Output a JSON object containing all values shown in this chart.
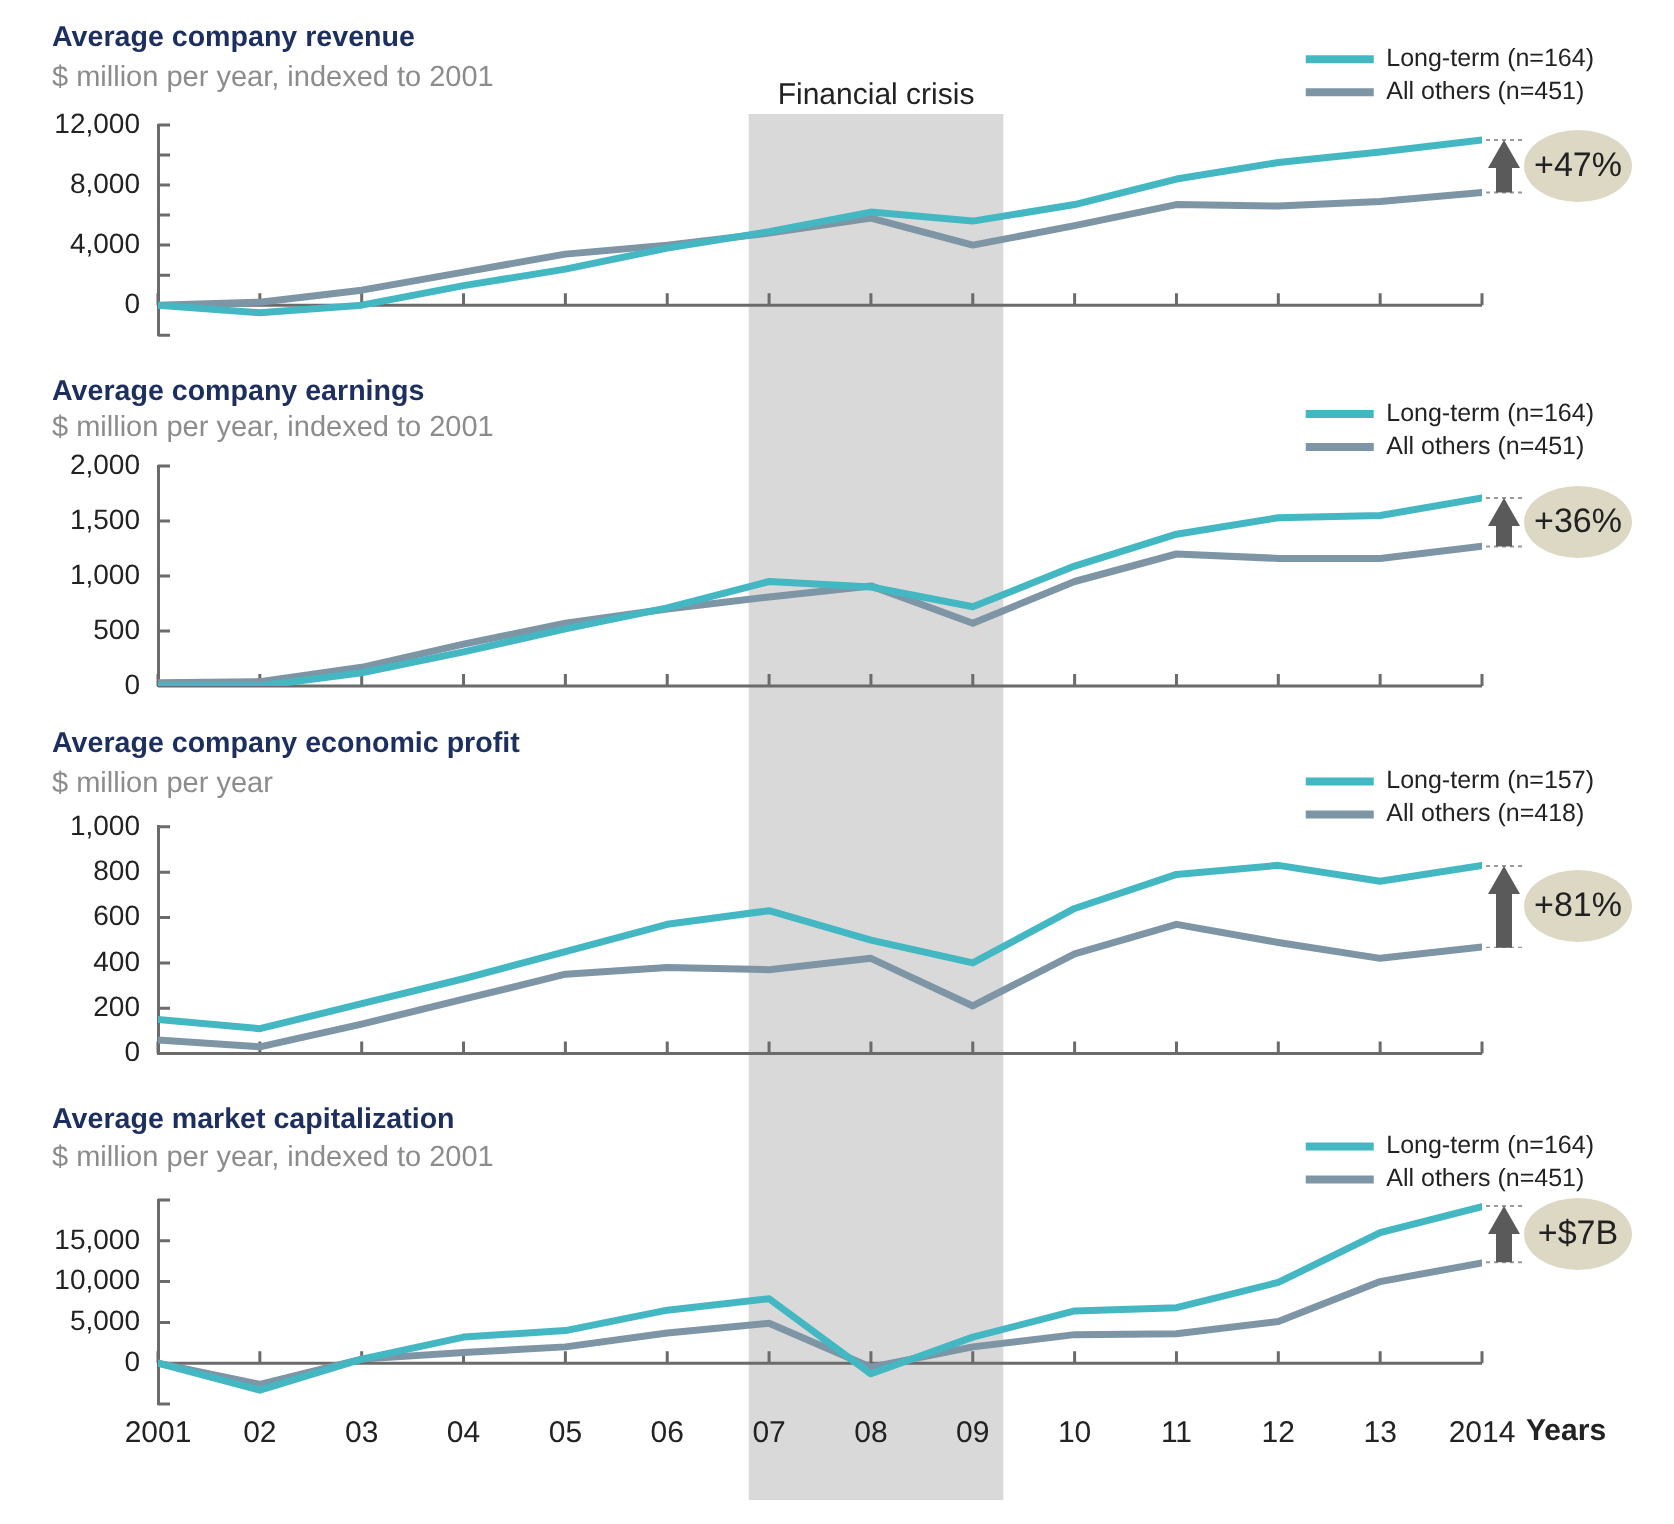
{
  "chart_data": [
    {
      "type": "line",
      "title": "Average company revenue",
      "subtitle": "$ million per year, indexed to 2001",
      "x": [
        2001,
        2002,
        2003,
        2004,
        2005,
        2006,
        2007,
        2008,
        2009,
        2010,
        2011,
        2012,
        2013,
        2014
      ],
      "xlim": [
        2001,
        2014
      ],
      "xticks": [
        {
          "value": 2001,
          "label": null
        },
        {
          "value": 2002,
          "label": null
        },
        {
          "value": 2003,
          "label": null
        },
        {
          "value": 2004,
          "label": null
        },
        {
          "value": 2005,
          "label": null
        },
        {
          "value": 2006,
          "label": null
        },
        {
          "value": 2007,
          "label": null
        },
        {
          "value": 2008,
          "label": null
        },
        {
          "value": 2009,
          "label": null
        },
        {
          "value": 2010,
          "label": null
        },
        {
          "value": 2011,
          "label": null
        },
        {
          "value": 2012,
          "label": null
        },
        {
          "value": 2013,
          "label": null
        },
        {
          "value": 2014,
          "label": null
        }
      ],
      "ylim": [
        -2000,
        12000
      ],
      "yticks": [
        {
          "value": -2000,
          "label": null
        },
        0,
        {
          "value": 2000,
          "label": null
        },
        {
          "value": 4000,
          "label": "4,000"
        },
        {
          "value": 6000,
          "label": null
        },
        {
          "value": 8000,
          "label": "8,000"
        },
        {
          "value": 10000,
          "label": null
        },
        {
          "value": 12000,
          "label": "12,000"
        }
      ],
      "tick_labels": "y",
      "legend": "top right",
      "marker": "none",
      "series": [
        {
          "name": "Long-term (n=164)",
          "color": "#44b8c2",
          "values": [
            0,
            -500,
            0,
            1300,
            2400,
            3800,
            4900,
            6200,
            5600,
            6700,
            8400,
            9500,
            10200,
            11000
          ]
        },
        {
          "name": "All others (n=451)",
          "color": "#7d95a5",
          "values": [
            0,
            200,
            1000,
            2200,
            3400,
            4000,
            4800,
            5800,
            4000,
            5300,
            6700,
            6600,
            6900,
            7500
          ]
        }
      ],
      "bands": [
        {
          "axis": "x",
          "from": 2006.8,
          "to": 2009.3,
          "label": "Financial crisis",
          "color": "#d9d9d9"
        }
      ],
      "annotations": [
        "+47%"
      ]
    },
    {
      "type": "line",
      "title": "Average company earnings",
      "subtitle": "$ million per year, indexed to 2001",
      "x": [
        2001,
        2002,
        2003,
        2004,
        2005,
        2006,
        2007,
        2008,
        2009,
        2010,
        2011,
        2012,
        2013,
        2014
      ],
      "xlim": [
        2001,
        2014
      ],
      "xticks": [
        {
          "value": 2001,
          "label": null
        },
        {
          "value": 2002,
          "label": null
        },
        {
          "value": 2003,
          "label": null
        },
        {
          "value": 2004,
          "label": null
        },
        {
          "value": 2005,
          "label": null
        },
        {
          "value": 2006,
          "label": null
        },
        {
          "value": 2007,
          "label": null
        },
        {
          "value": 2008,
          "label": null
        },
        {
          "value": 2009,
          "label": null
        },
        {
          "value": 2010,
          "label": null
        },
        {
          "value": 2011,
          "label": null
        },
        {
          "value": 2012,
          "label": null
        },
        {
          "value": 2013,
          "label": null
        },
        {
          "value": 2014,
          "label": null
        }
      ],
      "ylim": [
        0,
        2000
      ],
      "yticks": [
        0,
        500,
        {
          "value": 1000,
          "label": "1,000"
        },
        {
          "value": 1500,
          "label": "1,500"
        },
        {
          "value": 2000,
          "label": "2,000"
        }
      ],
      "tick_labels": "y",
      "legend": "top right",
      "marker": "none",
      "series": [
        {
          "name": "Long-term (n=164)",
          "color": "#44b8c2",
          "values": [
            0,
            0,
            120,
            310,
            520,
            710,
            950,
            900,
            720,
            1090,
            1380,
            1530,
            1550,
            1710
          ]
        },
        {
          "name": "All others (n=451)",
          "color": "#7d95a5",
          "values": [
            30,
            40,
            170,
            380,
            570,
            700,
            810,
            910,
            570,
            950,
            1200,
            1160,
            1160,
            1270
          ]
        }
      ],
      "bands": [
        {
          "axis": "x",
          "from": 2006.8,
          "to": 2009.3,
          "color": "#d9d9d9"
        }
      ],
      "annotations": [
        "+36%"
      ]
    },
    {
      "type": "line",
      "title": "Average company economic profit",
      "subtitle": "$ million per year",
      "x": [
        2001,
        2002,
        2003,
        2004,
        2005,
        2006,
        2007,
        2008,
        2009,
        2010,
        2011,
        2012,
        2013,
        2014
      ],
      "xlim": [
        2001,
        2014
      ],
      "xticks": [
        {
          "value": 2001,
          "label": null
        },
        {
          "value": 2002,
          "label": null
        },
        {
          "value": 2003,
          "label": null
        },
        {
          "value": 2004,
          "label": null
        },
        {
          "value": 2005,
          "label": null
        },
        {
          "value": 2006,
          "label": null
        },
        {
          "value": 2007,
          "label": null
        },
        {
          "value": 2008,
          "label": null
        },
        {
          "value": 2009,
          "label": null
        },
        {
          "value": 2010,
          "label": null
        },
        {
          "value": 2011,
          "label": null
        },
        {
          "value": 2012,
          "label": null
        },
        {
          "value": 2013,
          "label": null
        },
        {
          "value": 2014,
          "label": null
        }
      ],
      "ylim": [
        0,
        1000
      ],
      "yticks": [
        0,
        200,
        400,
        600,
        800,
        {
          "value": 1000,
          "label": "1,000"
        }
      ],
      "tick_labels": "y",
      "legend": "top right",
      "marker": "none",
      "series": [
        {
          "name": "Long-term (n=157)",
          "color": "#44b8c2",
          "values": [
            150,
            110,
            220,
            330,
            450,
            570,
            630,
            500,
            400,
            640,
            790,
            830,
            760,
            830
          ]
        },
        {
          "name": "All others (n=418)",
          "color": "#7d95a5",
          "values": [
            60,
            30,
            130,
            240,
            350,
            380,
            370,
            420,
            210,
            440,
            570,
            490,
            420,
            470
          ]
        }
      ],
      "bands": [
        {
          "axis": "x",
          "from": 2006.8,
          "to": 2009.3,
          "color": "#d9d9d9"
        }
      ],
      "annotations": [
        "+81%"
      ]
    },
    {
      "type": "line",
      "title": "Average market capitalization",
      "subtitle": "$ million per year, indexed to 2001",
      "xlabel": "Years",
      "x": [
        2001,
        2002,
        2003,
        2004,
        2005,
        2006,
        2007,
        2008,
        2009,
        2010,
        2011,
        2012,
        2013,
        2014
      ],
      "xlim": [
        2001,
        2014
      ],
      "xticks": [
        2001,
        {
          "value": 2002,
          "label": "02"
        },
        {
          "value": 2003,
          "label": "03"
        },
        {
          "value": 2004,
          "label": "04"
        },
        {
          "value": 2005,
          "label": "05"
        },
        {
          "value": 2006,
          "label": "06"
        },
        {
          "value": 2007,
          "label": "07"
        },
        {
          "value": 2008,
          "label": "08"
        },
        {
          "value": 2009,
          "label": "09"
        },
        {
          "value": 2010,
          "label": "10"
        },
        {
          "value": 2011,
          "label": "11"
        },
        {
          "value": 2012,
          "label": "12"
        },
        {
          "value": 2013,
          "label": "13"
        },
        2014
      ],
      "ylim": [
        -5000,
        20000
      ],
      "yticks": [
        {
          "value": -5000,
          "label": null
        },
        0,
        {
          "value": 5000,
          "label": "5,000"
        },
        {
          "value": 10000,
          "label": "10,000"
        },
        {
          "value": 15000,
          "label": "15,000"
        },
        {
          "value": 20000,
          "label": null
        }
      ],
      "legend": "top right",
      "marker": "none",
      "series": [
        {
          "name": "Long-term (n=164)",
          "color": "#44b8c2",
          "values": [
            0,
            -3300,
            500,
            3200,
            4000,
            6500,
            7900,
            -1300,
            3200,
            6400,
            6800,
            9900,
            16000,
            19200
          ]
        },
        {
          "name": "All others (n=451)",
          "color": "#7d95a5",
          "values": [
            0,
            -2600,
            500,
            1300,
            2000,
            3700,
            4900,
            -500,
            2000,
            3500,
            3600,
            5100,
            10000,
            12300
          ]
        }
      ],
      "bands": [
        {
          "axis": "x",
          "from": 2006.8,
          "to": 2009.3,
          "color": "#d9d9d9"
        }
      ],
      "annotations": [
        "+$7B"
      ]
    }
  ]
}
